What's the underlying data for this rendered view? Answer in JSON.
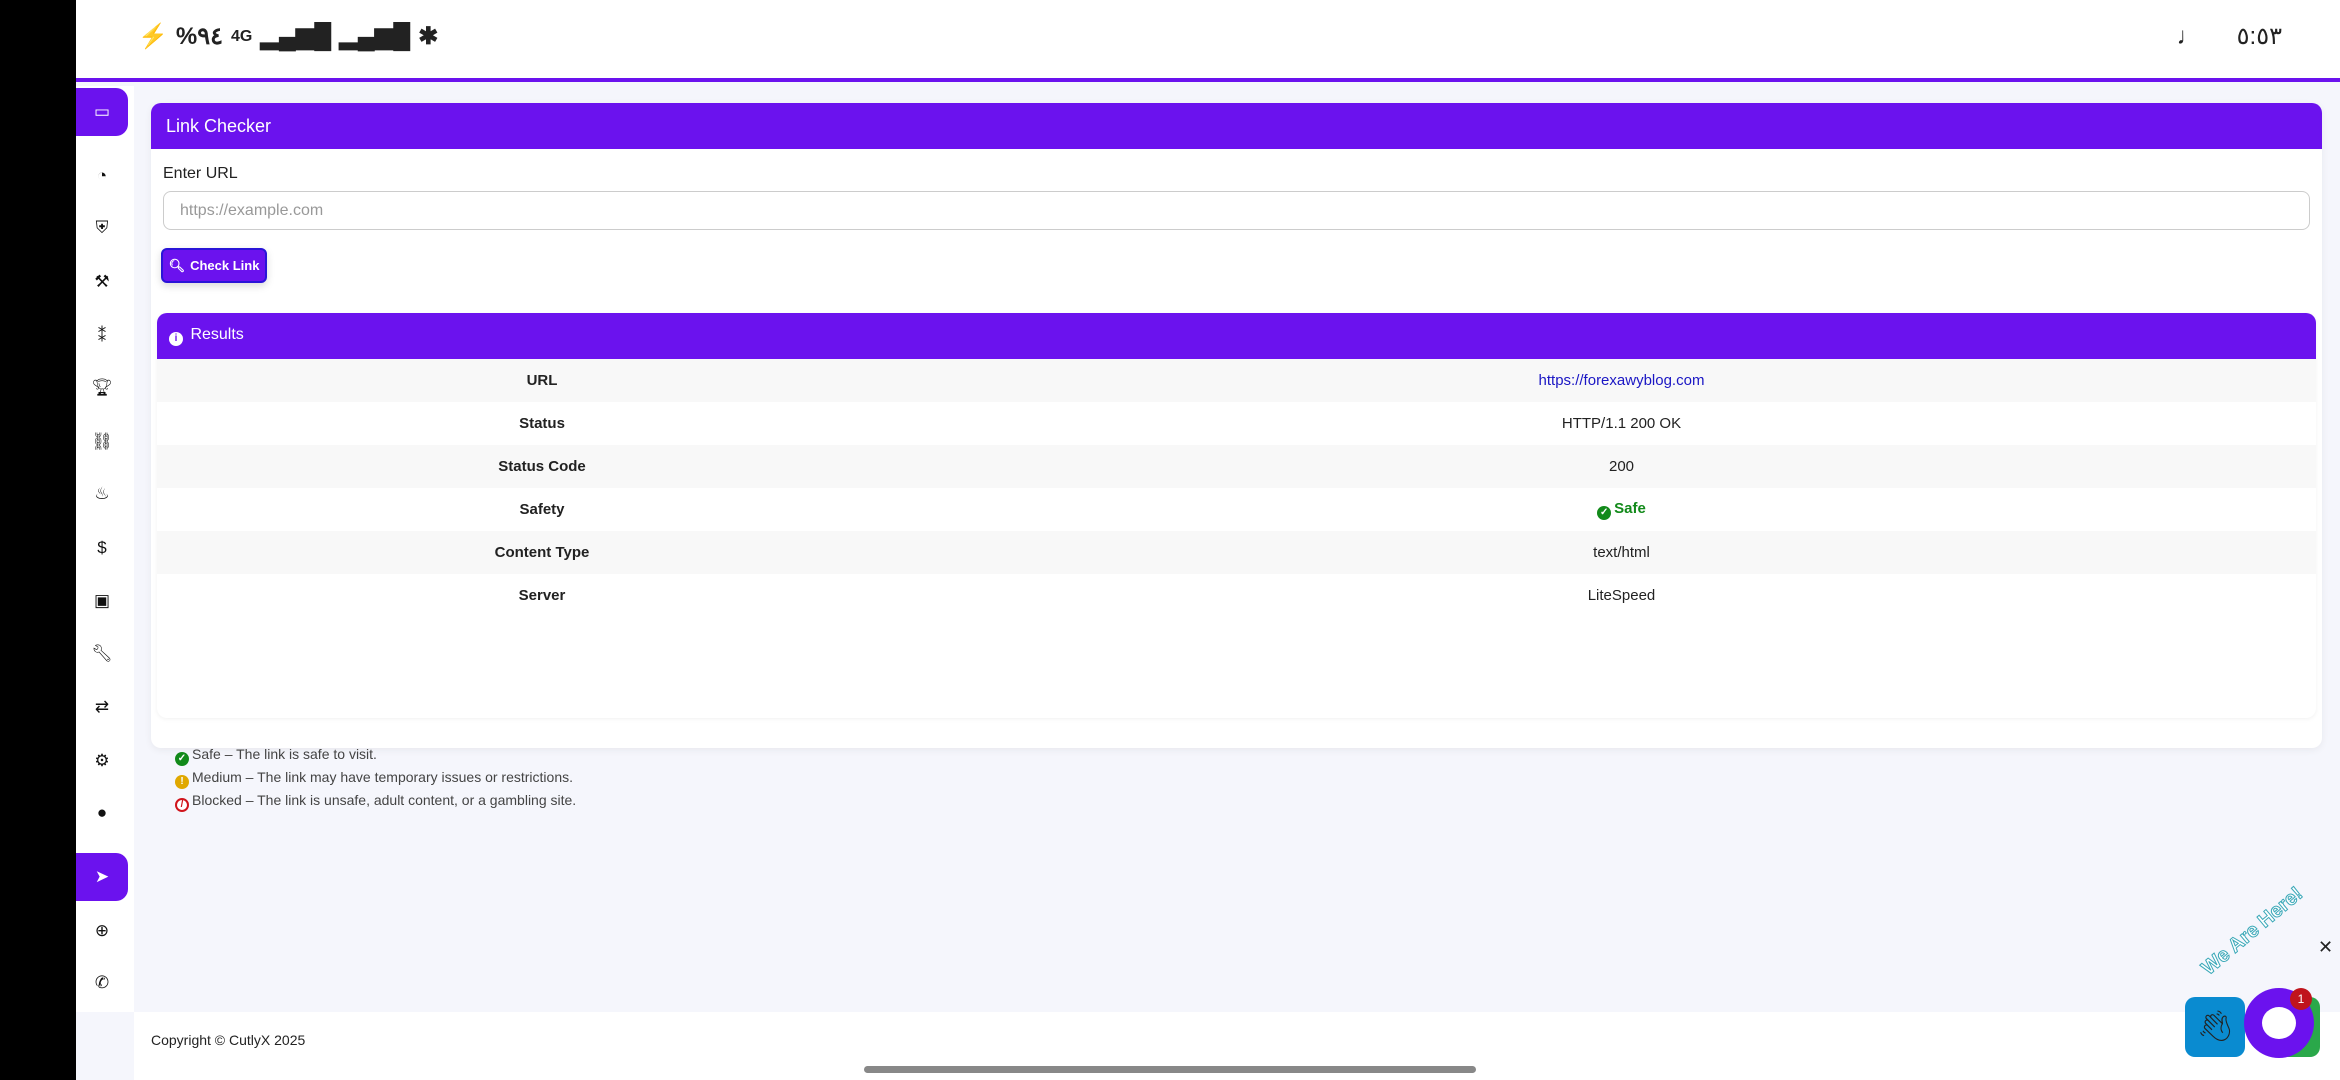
{
  "status_bar": {
    "battery": "%٩٤",
    "network": "4G",
    "time": "٥:٥٣"
  },
  "sidebar": {
    "items": [
      "card-icon",
      "dashboard-icon",
      "shield-icon",
      "gavel-icon",
      "footprints-icon",
      "trophy-icon",
      "link-icon",
      "fire-icon",
      "dollar-icon",
      "money-icon",
      "wrench-icon",
      "exchange-icon",
      "cogs-icon",
      "user-icon",
      "telegram-icon",
      "lifering-icon",
      "whatsapp-icon"
    ],
    "active": [
      0,
      14
    ]
  },
  "link_checker": {
    "title": "Link Checker",
    "label": "Enter URL",
    "placeholder": "https://example.com",
    "button": "Check Link"
  },
  "results": {
    "title": "Results",
    "rows": [
      {
        "label": "URL",
        "value": "https://forexawyblog.com"
      },
      {
        "label": "Status",
        "value": "HTTP/1.1 200 OK"
      },
      {
        "label": "Status Code",
        "value": "200"
      },
      {
        "label": "Safety",
        "value": "Safe"
      },
      {
        "label": "Content Type",
        "value": "text/html"
      },
      {
        "label": "Server",
        "value": "LiteSpeed"
      }
    ],
    "legend": [
      "Safe – The link is safe to visit.",
      "Medium – The link may have temporary issues or restrictions.",
      "Blocked – The link is unsafe, adult content, or a gambling site."
    ]
  },
  "footer": {
    "copyright": "Copyright © CutlyX 2025"
  },
  "chat": {
    "banner": "We Are Here!",
    "badge": "1"
  },
  "colors": {
    "accent": "#6b12ee",
    "safe": "#128a1a",
    "medium": "#e0a800",
    "blocked": "#d0141c",
    "link": "#1a16c4"
  }
}
